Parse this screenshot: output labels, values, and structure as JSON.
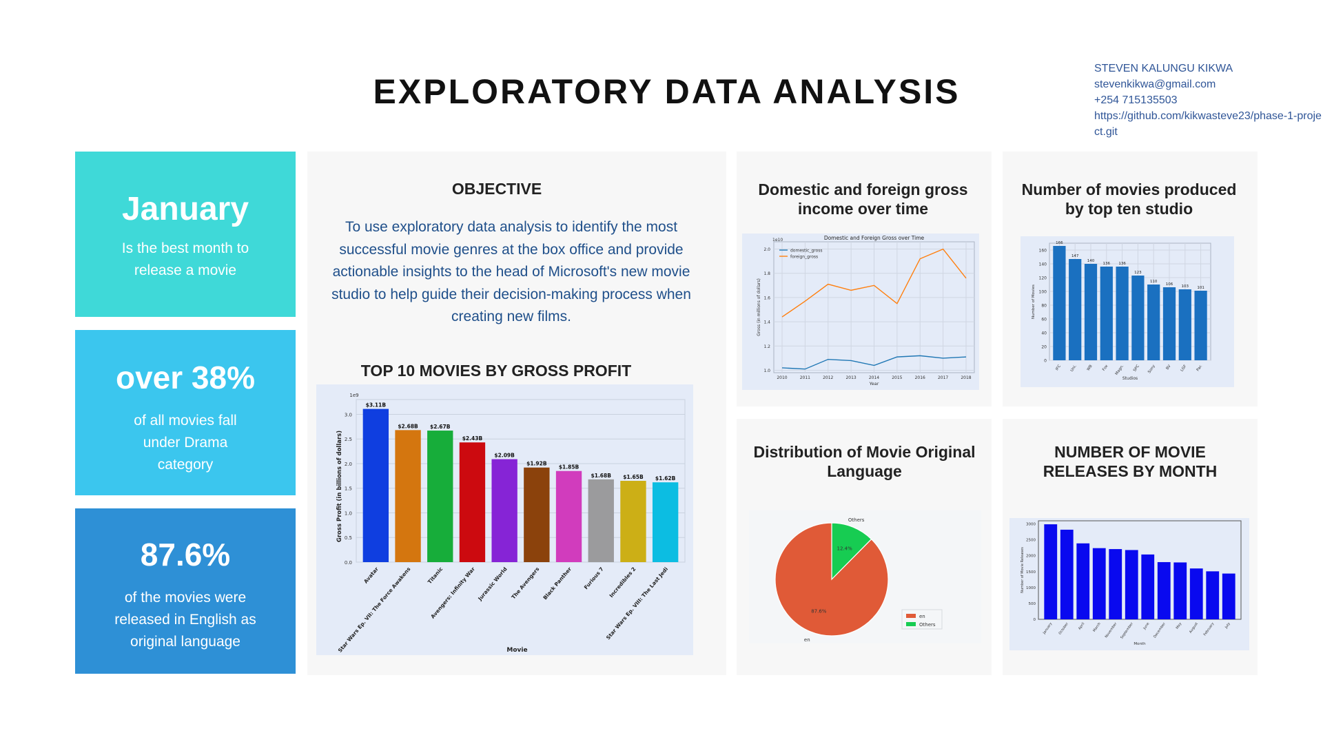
{
  "header": {
    "title": "EXPLORATORY DATA ANALYSIS",
    "author_lines": [
      "STEVEN KALUNGU KIKWA",
      "stevenkikwa@gmail.com",
      "+254 715135503",
      "https://github.com/kikwasteve23/phase-1-project.git"
    ]
  },
  "cards": [
    {
      "value": "January",
      "desc": "Is the best month to release a movie",
      "color": "#3fd9d8"
    },
    {
      "value": "over 38%",
      "desc": "of all movies fall under Drama category",
      "color": "#3bc6ee"
    },
    {
      "value": "87.6%",
      "desc": "of the movies were released in English as original language",
      "color": "#2e90d6"
    }
  ],
  "objective": {
    "heading": "OBJECTIVE",
    "text": "To use exploratory data analysis to identify the most successful movie genres at the box office and provide actionable insights to the head of Microsoft's new movie studio to help guide their decision-making process when creating new films."
  },
  "panels": {
    "domestic_heading": "Domestic and foreign gross income over time",
    "studio_heading": "Number of movies produced by top ten studio",
    "language_heading": "Distribution of Movie Original Language",
    "months_heading": "NUMBER OF MOVIE RELEASES BY MONTH"
  },
  "chart_data": [
    {
      "id": "top10",
      "type": "bar",
      "title": "TOP 10 MOVIES BY GROSS PROFIT",
      "xlabel": "Movie",
      "ylabel": "Gross Profit (in billions of dollars)",
      "scale_note": "1e9",
      "ylim": [
        0,
        3.3
      ],
      "yticks": [
        "0.0",
        "0.5",
        "1.0",
        "1.5",
        "2.0",
        "2.5",
        "3.0"
      ],
      "categories": [
        "Avatar",
        "Star Wars Ep. VII: The Force Awakens",
        "Titanic",
        "Avengers: Infinity War",
        "Jurassic World",
        "The Avengers",
        "Black Panther",
        "Furious 7",
        "Incredibles 2",
        "Star Wars Ep. VIII: The Last Jedi"
      ],
      "values": [
        3.11,
        2.68,
        2.67,
        2.43,
        2.09,
        1.92,
        1.85,
        1.68,
        1.65,
        1.62
      ],
      "labels": [
        "$3.11B",
        "$2.68B",
        "$2.67B",
        "$2.43B",
        "$2.09B",
        "$1.92B",
        "$1.85B",
        "$1.68B",
        "$1.65B",
        "$1.62B"
      ],
      "colors": [
        "#0f3ee0",
        "#d4760f",
        "#17ad3a",
        "#cc0a0f",
        "#8624d6",
        "#8b420c",
        "#d13cbd",
        "#9b9b9d",
        "#ccaf16",
        "#0cbde2"
      ],
      "grid": true
    },
    {
      "id": "gross",
      "type": "line",
      "title": "Domestic and Foreign Gross over Time",
      "xlabel": "Year",
      "ylabel": "Gross (in millions of dollars)",
      "scale_note": "1e10",
      "x": [
        2010,
        2011,
        2012,
        2013,
        2014,
        2015,
        2016,
        2017,
        2018
      ],
      "ylim": [
        0.98,
        2.06
      ],
      "yticks": [
        "1.0",
        "1.2",
        "1.4",
        "1.6",
        "1.8",
        "2.0"
      ],
      "series": [
        {
          "name": "domestic_gross",
          "color": "#1f77b4",
          "values": [
            1.02,
            1.01,
            1.09,
            1.08,
            1.04,
            1.11,
            1.12,
            1.1,
            1.11
          ]
        },
        {
          "name": "foreign_gross",
          "color": "#ff7f0e",
          "values": [
            1.44,
            1.57,
            1.71,
            1.66,
            1.7,
            1.55,
            1.92,
            2.0,
            1.76
          ]
        }
      ],
      "legend": "top-left",
      "grid": true
    },
    {
      "id": "studios",
      "type": "bar",
      "xlabel": "Studios",
      "ylabel": "Number of Movies",
      "ylim": [
        0,
        170
      ],
      "yticks": [
        "0",
        "20",
        "40",
        "60",
        "80",
        "100",
        "120",
        "140",
        "160"
      ],
      "categories": [
        "IFC",
        "Uni.",
        "WB",
        "Fox",
        "Magn.",
        "SPC",
        "Sony",
        "BV",
        "LGF",
        "Par."
      ],
      "values": [
        166,
        147,
        140,
        136,
        136,
        123,
        110,
        106,
        103,
        101
      ],
      "color": "#1a70c0",
      "grid": true
    },
    {
      "id": "language",
      "type": "pie",
      "labels": [
        "en",
        "Others"
      ],
      "values": [
        87.6,
        12.4
      ],
      "pct_labels": [
        "87.6%",
        "12.4%"
      ],
      "colors": [
        "#e05a37",
        "#17cc52"
      ],
      "legend": "bottom-right"
    },
    {
      "id": "months",
      "type": "bar",
      "xlabel": "Month",
      "ylabel": "Number of Movie Releases",
      "ylim": [
        0,
        3100
      ],
      "yticks": [
        "0",
        "500",
        "1000",
        "1500",
        "2000",
        "2500",
        "3000"
      ],
      "categories": [
        "January",
        "October",
        "April",
        "March",
        "November",
        "September",
        "June",
        "December",
        "May",
        "August",
        "February",
        "July"
      ],
      "values": [
        2990,
        2820,
        2390,
        2240,
        2210,
        2180,
        2040,
        1800,
        1790,
        1600,
        1510,
        1440
      ],
      "color": "#0909ef",
      "grid": false
    }
  ]
}
